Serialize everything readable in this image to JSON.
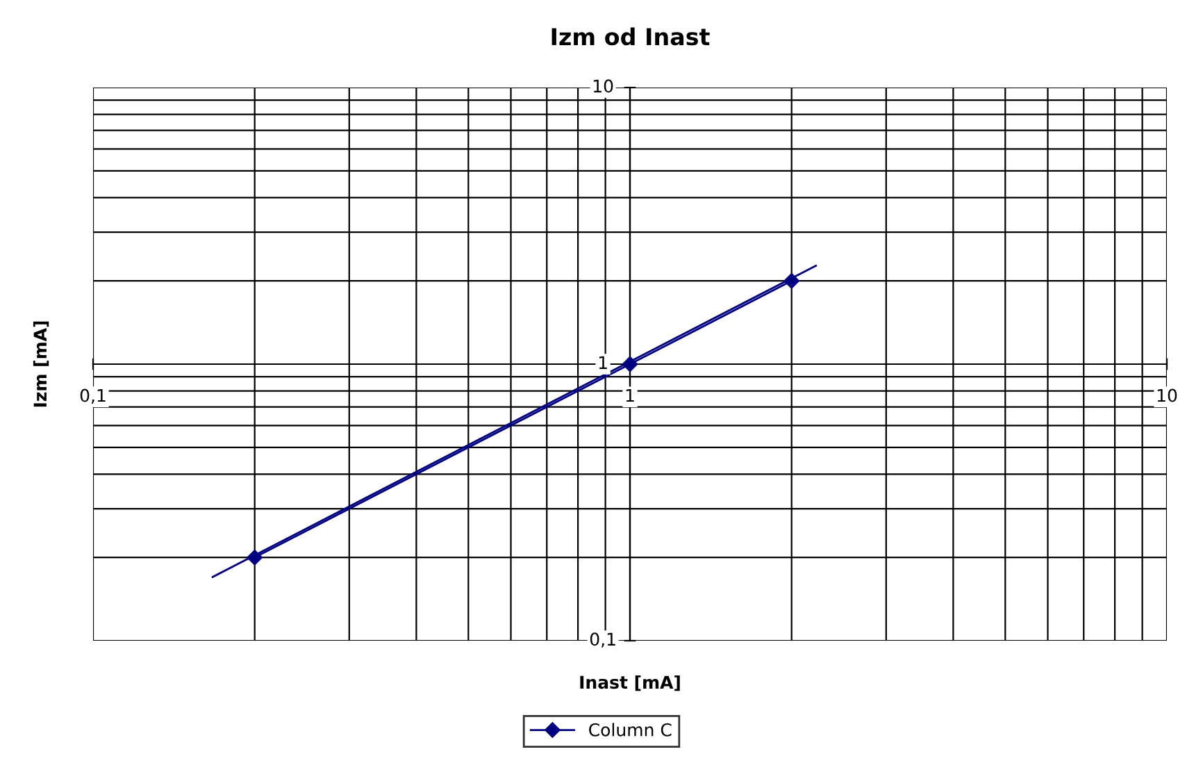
{
  "chart_data": {
    "type": "line",
    "title": "Izm od Inast",
    "xlabel": "Inast [mA]",
    "ylabel": "Izm [mA]",
    "log": "xy",
    "xlim": [
      0.1,
      10
    ],
    "ylim": [
      0.1,
      10
    ],
    "xticks": [
      {
        "value": 0.1,
        "label": "0,1"
      },
      1,
      10
    ],
    "yticks": [
      {
        "value": 0.1,
        "label": "0,1"
      },
      1,
      10
    ],
    "grid": true,
    "legend": "bottom",
    "marker": "diamond",
    "line_style": "solid",
    "series": [
      {
        "name": "Column C",
        "color": "#000080",
        "x": [
          0.2,
          1,
          2
        ],
        "values": [
          0.2,
          1,
          2
        ]
      },
      {
        "type": "line",
        "color": "#000080",
        "marker": "none",
        "x": [
          0.167,
          2.22
        ],
        "values": [
          0.17,
          2.27
        ]
      }
    ]
  }
}
